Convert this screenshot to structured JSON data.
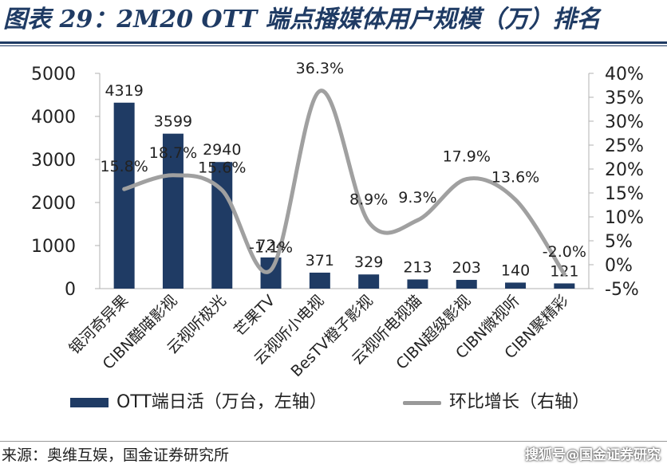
{
  "title": "图表 29：2M20 OTT 端点播媒体用户规模（万）排名",
  "source": "来源：奥维互娱，国金证券研究所",
  "watermark": "搜狐号@国金证券研究",
  "colors": {
    "bar": "#1f3b64",
    "line": "#a0a0a0",
    "title": "#1f3b64"
  },
  "chart_data": {
    "type": "bar",
    "categories": [
      "银河奇异果",
      "CIBN酷喵影视",
      "云视听极光",
      "芒果TV",
      "云视听小电视",
      "BesTV橙子影视",
      "云视听电视猫",
      "CIBN超级影视",
      "CIBN微视听",
      "CIBN聚精彩"
    ],
    "series": [
      {
        "name": "OTT端日活（万台，左轴）",
        "type": "bar",
        "axis": "left",
        "values": [
          4319,
          3599,
          2940,
          724,
          371,
          329,
          213,
          203,
          140,
          121
        ],
        "labels": [
          "4319",
          "3599",
          "2940",
          "724",
          "371",
          "329",
          "213",
          "203",
          "140",
          "121"
        ]
      },
      {
        "name": "环比增长（右轴）",
        "type": "line",
        "axis": "right",
        "smooth": true,
        "values": [
          15.8,
          18.7,
          15.6,
          -1.1,
          36.3,
          8.9,
          9.3,
          17.9,
          13.6,
          -2.0
        ],
        "labels": [
          "15.8%",
          "18.7%",
          "15.6%",
          "-1.1%",
          "36.3%",
          "8.9%",
          "9.3%",
          "17.9%",
          "13.6%",
          "-2.0%"
        ]
      }
    ],
    "y_left": {
      "min": 0,
      "max": 5000,
      "ticks": [
        "0",
        "1000",
        "2000",
        "3000",
        "4000",
        "5000"
      ]
    },
    "y_right": {
      "min": -5,
      "max": 40,
      "ticks": [
        "-5%",
        "0%",
        "5%",
        "10%",
        "15%",
        "20%",
        "25%",
        "30%",
        "35%",
        "40%"
      ]
    },
    "grid": false,
    "legend_position": "bottom"
  }
}
